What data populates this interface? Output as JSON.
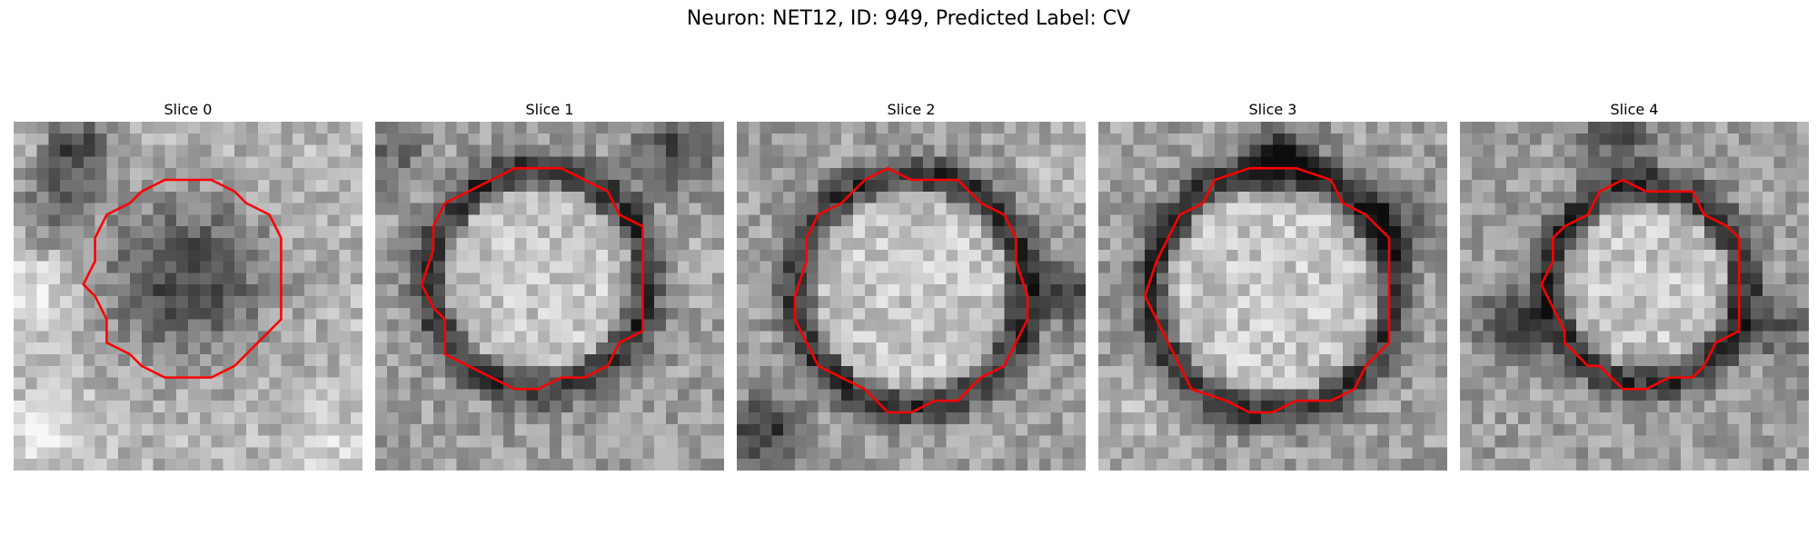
{
  "figure": {
    "title": "Neuron: NET12, ID: 949, Predicted Label: CV"
  },
  "panels": [
    {
      "label": "Slice 0",
      "appearance": "dark",
      "seed": 11
    },
    {
      "label": "Slice 1",
      "appearance": "light",
      "seed": 23
    },
    {
      "label": "Slice 2",
      "appearance": "light",
      "seed": 37
    },
    {
      "label": "Slice 3",
      "appearance": "light",
      "seed": 41
    },
    {
      "label": "Slice 4",
      "appearance": "light",
      "seed": 53
    }
  ],
  "colors": {
    "contour": "#ff0000"
  }
}
